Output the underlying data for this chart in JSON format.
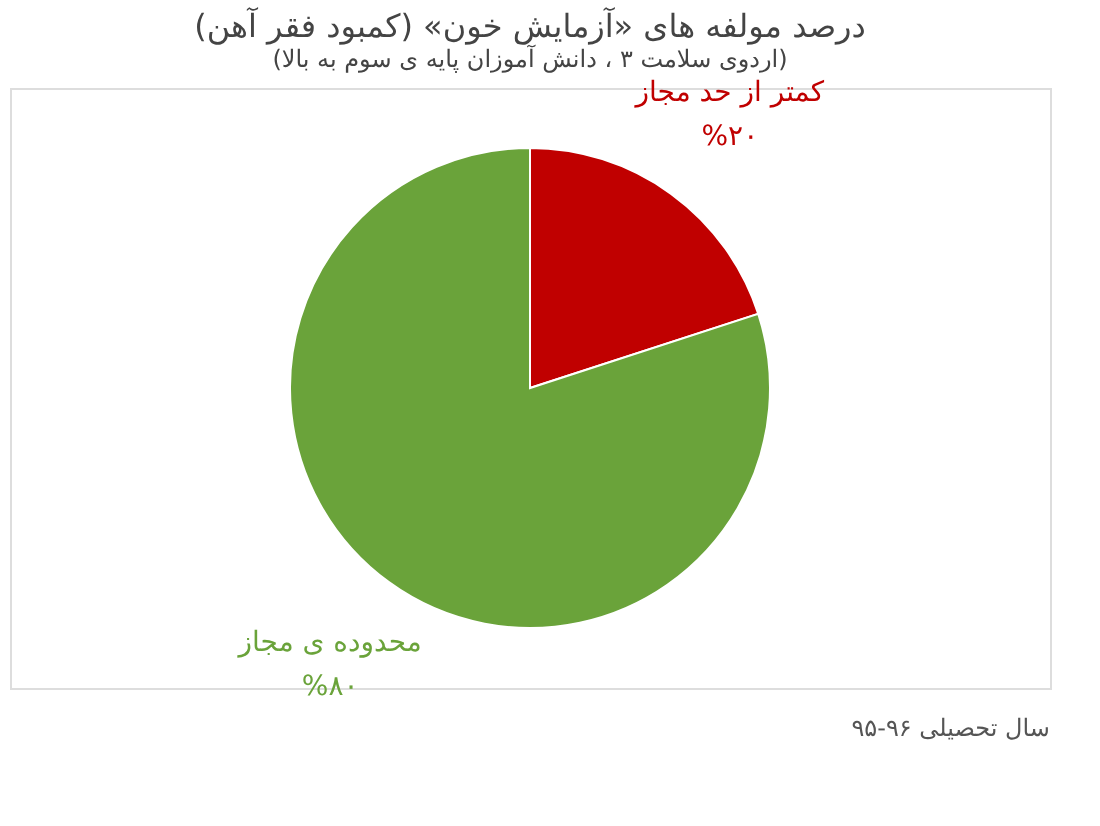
{
  "chart_data": {
    "type": "pie",
    "title": "درصد مولفه های «آزمایش خون» (کمبود فقر آهن)",
    "subtitle": "(اردوی سلامت ۳ ، دانش آموزان پایه ی سوم به بالا)",
    "categories": [
      "کمتر از حد مجاز",
      "محدوده ی مجاز"
    ],
    "values": [
      20,
      80
    ],
    "colors": [
      "#c00000",
      "#6aa33a"
    ],
    "value_labels": [
      "%۲۰",
      "%۸۰"
    ],
    "legend": false,
    "annotations": [
      "سال تحصیلی ۹۶-۹۵"
    ]
  }
}
